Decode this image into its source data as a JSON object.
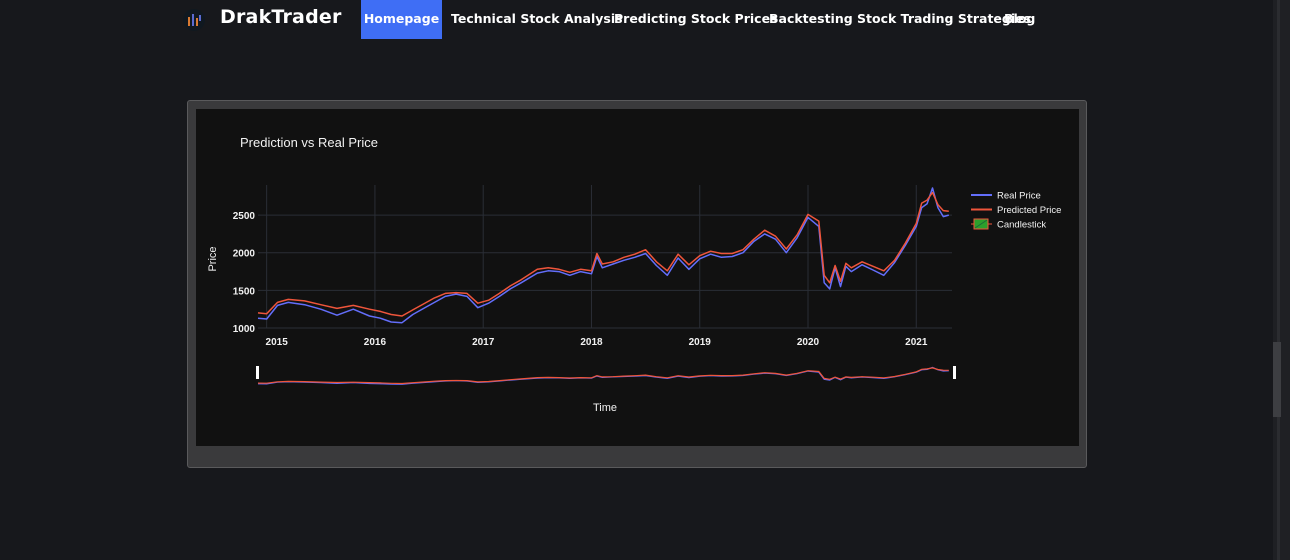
{
  "nav": {
    "brand": "DrakTrader",
    "items": [
      "Homepage",
      "Technical Stock Analysis",
      "Predicting Stock Prices",
      "Backtesting Stock Trading Strategies",
      "Blog"
    ],
    "active": "Homepage"
  },
  "chart_data": {
    "type": "line",
    "title": "Prediction vs Real Price",
    "xlabel": "Time",
    "ylabel": "Price",
    "x_ticks": [
      "2015",
      "2016",
      "2017",
      "2018",
      "2019",
      "2020",
      "2021"
    ],
    "y_ticks": [
      1000,
      1500,
      2000,
      2500
    ],
    "xlim": [
      2014.92,
      2021.33
    ],
    "ylim": [
      1000,
      2900
    ],
    "grid": true,
    "legend_position": "top-right",
    "range_slider": true,
    "series": [
      {
        "name": "Real Price",
        "color": "#636efa",
        "x": [
          2014.92,
          2015.0,
          2015.1,
          2015.2,
          2015.35,
          2015.5,
          2015.65,
          2015.8,
          2015.95,
          2016.05,
          2016.15,
          2016.25,
          2016.35,
          2016.45,
          2016.55,
          2016.65,
          2016.75,
          2016.85,
          2016.95,
          2017.05,
          2017.15,
          2017.25,
          2017.35,
          2017.5,
          2017.6,
          2017.7,
          2017.8,
          2017.9,
          2018.0,
          2018.05,
          2018.1,
          2018.2,
          2018.3,
          2018.4,
          2018.5,
          2018.6,
          2018.7,
          2018.8,
          2018.9,
          2019.0,
          2019.1,
          2019.2,
          2019.3,
          2019.4,
          2019.5,
          2019.6,
          2019.7,
          2019.8,
          2019.9,
          2020.0,
          2020.1,
          2020.15,
          2020.2,
          2020.25,
          2020.3,
          2020.35,
          2020.4,
          2020.5,
          2020.6,
          2020.7,
          2020.8,
          2020.9,
          2021.0,
          2021.05,
          2021.1,
          2021.15,
          2021.2,
          2021.25,
          2021.3
        ],
        "y": [
          1130,
          1120,
          1300,
          1340,
          1310,
          1250,
          1170,
          1250,
          1160,
          1130,
          1080,
          1070,
          1180,
          1260,
          1340,
          1420,
          1450,
          1420,
          1270,
          1330,
          1420,
          1520,
          1600,
          1730,
          1760,
          1750,
          1700,
          1750,
          1720,
          1950,
          1800,
          1850,
          1900,
          1940,
          1990,
          1830,
          1700,
          1930,
          1780,
          1920,
          1980,
          1940,
          1950,
          2000,
          2150,
          2250,
          2180,
          2000,
          2200,
          2470,
          2350,
          1600,
          1520,
          1800,
          1550,
          1820,
          1750,
          1840,
          1770,
          1700,
          1870,
          2100,
          2350,
          2600,
          2650,
          2860,
          2600,
          2480,
          2500
        ]
      },
      {
        "name": "Predicted Price",
        "color": "#ef553b",
        "x": [
          2014.92,
          2015.0,
          2015.1,
          2015.2,
          2015.35,
          2015.5,
          2015.65,
          2015.8,
          2015.95,
          2016.05,
          2016.15,
          2016.25,
          2016.35,
          2016.45,
          2016.55,
          2016.65,
          2016.75,
          2016.85,
          2016.95,
          2017.05,
          2017.15,
          2017.25,
          2017.35,
          2017.5,
          2017.6,
          2017.7,
          2017.8,
          2017.9,
          2018.0,
          2018.05,
          2018.1,
          2018.2,
          2018.3,
          2018.4,
          2018.5,
          2018.6,
          2018.7,
          2018.8,
          2018.9,
          2019.0,
          2019.1,
          2019.2,
          2019.3,
          2019.4,
          2019.5,
          2019.6,
          2019.7,
          2019.8,
          2019.9,
          2020.0,
          2020.1,
          2020.15,
          2020.2,
          2020.25,
          2020.3,
          2020.35,
          2020.4,
          2020.5,
          2020.6,
          2020.7,
          2020.8,
          2020.9,
          2021.0,
          2021.05,
          2021.1,
          2021.15,
          2021.2,
          2021.25,
          2021.3
        ],
        "y": [
          1200,
          1190,
          1340,
          1380,
          1360,
          1310,
          1260,
          1300,
          1250,
          1220,
          1180,
          1160,
          1240,
          1320,
          1400,
          1460,
          1470,
          1460,
          1330,
          1370,
          1460,
          1560,
          1640,
          1780,
          1800,
          1780,
          1740,
          1780,
          1760,
          1990,
          1850,
          1880,
          1940,
          1980,
          2040,
          1880,
          1760,
          1980,
          1840,
          1960,
          2020,
          1990,
          1990,
          2040,
          2180,
          2300,
          2220,
          2050,
          2240,
          2510,
          2420,
          1700,
          1600,
          1830,
          1620,
          1860,
          1800,
          1880,
          1820,
          1760,
          1900,
          2130,
          2390,
          2660,
          2700,
          2800,
          2640,
          2560,
          2550
        ]
      },
      {
        "name": "Candlestick",
        "color": "#2ca02c"
      }
    ]
  }
}
